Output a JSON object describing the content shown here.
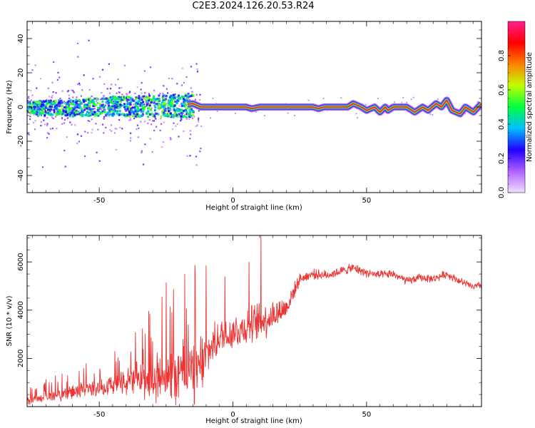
{
  "title": "C2E3.2024.126.20.53.R24",
  "chart_data": [
    {
      "type": "heatmap",
      "title": "",
      "xlabel": "Height of straight line (km)",
      "ylabel": "Frequency (Hz)",
      "xlim": [
        -77,
        93
      ],
      "ylim": [
        -50,
        50
      ],
      "xticks": [
        -50,
        0,
        50
      ],
      "yticks": [
        -40,
        -20,
        0,
        20,
        40
      ],
      "colorbar": {
        "label": "Normalized spectral amplitude",
        "ticks": [
          "0.0",
          "0.2",
          "0.4",
          "0.6",
          "0.8"
        ],
        "range": [
          0,
          1
        ],
        "colors": [
          "#f0e0ff",
          "#b060ff",
          "#2000ff",
          "#00c0ff",
          "#00ff40",
          "#c0ff00",
          "#ff8000",
          "#ff0000",
          "#ff2090"
        ]
      },
      "frequency_track": {
        "x": [
          -77,
          -60,
          -45,
          -30,
          -20,
          -15,
          -12,
          -5,
          0,
          5,
          7,
          10,
          20,
          30,
          32,
          34,
          40,
          43,
          45,
          48,
          50,
          53,
          55,
          57,
          58,
          60,
          63,
          65,
          68,
          71,
          73,
          76,
          78,
          80,
          82,
          85,
          87,
          90,
          93
        ],
        "y": [
          0,
          0,
          1,
          1,
          1,
          2,
          0,
          0,
          0,
          0,
          -1,
          0,
          0,
          0,
          -1,
          0,
          0,
          0,
          2,
          0,
          -2,
          0,
          -3,
          0,
          -2,
          0,
          0,
          0,
          -3,
          0,
          -2,
          2,
          0,
          4,
          -2,
          -4,
          0,
          -3,
          2
        ],
        "noisy_region_end": -15
      }
    },
    {
      "type": "line",
      "title": "",
      "xlabel": "Height of straight line (km)",
      "ylabel": "SNR (10 * v/v)",
      "xlim": [
        -77,
        93
      ],
      "ylim": [
        0,
        7100
      ],
      "xticks": [
        -50,
        0,
        50
      ],
      "yticks": [
        2000,
        4000,
        6000
      ],
      "color": "#ee3333",
      "baseline": {
        "x": [
          -77,
          -65,
          -55,
          -45,
          -35,
          -25,
          -15,
          -12,
          -8,
          -5,
          0,
          5,
          10,
          15,
          20,
          25,
          30,
          35,
          40,
          45,
          50,
          55,
          60,
          65,
          70,
          75,
          80,
          85,
          90,
          93
        ],
        "y": [
          250,
          500,
          700,
          900,
          1100,
          1300,
          1500,
          1700,
          2500,
          2900,
          3100,
          3300,
          3500,
          3800,
          4100,
          5300,
          5500,
          5450,
          5600,
          5750,
          5550,
          5450,
          5500,
          5200,
          5350,
          5300,
          5500,
          5200,
          4950,
          5050
        ]
      },
      "noise_amplitude": {
        "x": [
          -77,
          -45,
          -20,
          -12,
          -8,
          0,
          10,
          20,
          25,
          93
        ],
        "y": [
          200,
          500,
          1500,
          1700,
          900,
          900,
          1000,
          600,
          250,
          180
        ]
      },
      "spikes": [
        {
          "x": 10.5,
          "y": 7100
        },
        {
          "x": -18,
          "y": 5500
        },
        {
          "x": -25,
          "y": 5150
        },
        {
          "x": -10,
          "y": 5850
        },
        {
          "x": -3,
          "y": 5400
        },
        {
          "x": 6,
          "y": 6000
        }
      ]
    }
  ]
}
